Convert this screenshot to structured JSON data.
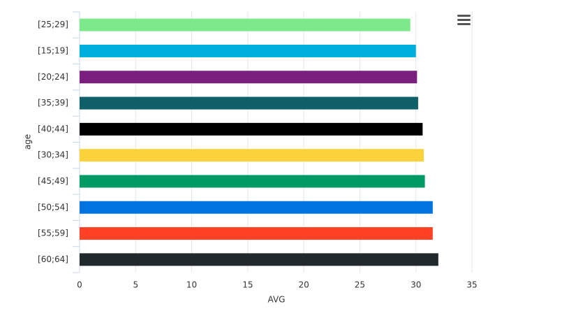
{
  "chart_data": {
    "type": "hbar",
    "categories": [
      "[25;29]",
      "[15;19]",
      "[20;24]",
      "[35;39]",
      "[40;44]",
      "[30;34]",
      "[45;49]",
      "[50;54]",
      "[55;59]",
      "[60;64]"
    ],
    "values": [
      29.5,
      30.0,
      30.1,
      30.2,
      30.6,
      30.7,
      30.8,
      31.5,
      31.5,
      32.0
    ],
    "colors": [
      "#7cea8a",
      "#00b0dc",
      "#7a1f7e",
      "#0f5f68",
      "#000000",
      "#fcd23b",
      "#009a65",
      "#0073e0",
      "#ff4125",
      "#22292c"
    ],
    "x_label": "AVG",
    "y_label": "age",
    "xlim": [
      0,
      35
    ],
    "xticks": [
      0,
      5,
      10,
      15,
      20,
      25,
      30,
      35
    ],
    "grid": true
  }
}
